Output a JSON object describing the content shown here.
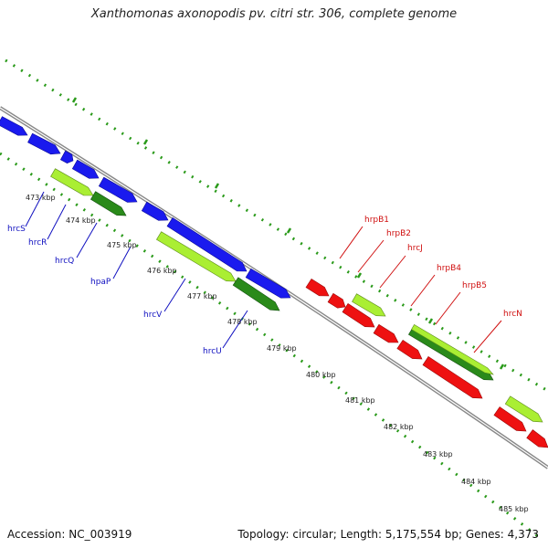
{
  "title": "Xanthomonas axonopodis pv. citri str. 306, complete genome",
  "footer": {
    "accession": "Accession: NC_003919",
    "summary": "Topology: circular; Length: 5,175,554 bp; Genes: 4,373"
  },
  "scale_labels": [
    "473 kbp",
    "474 kbp",
    "475 kbp",
    "476 kbp",
    "477 kbp",
    "478 kbp",
    "479 kbp",
    "480 kbp",
    "481 kbp",
    "482 kbp",
    "483 kbp",
    "484 kbp",
    "485 kbp"
  ],
  "gene_labels_left": [
    "hrcS",
    "hrcR",
    "hrcQ",
    "hpaP",
    "hrcV",
    "hrcU"
  ],
  "gene_labels_right": [
    "hrpB1",
    "hrpB2",
    "hrcJ",
    "hrpB4",
    "hrpB5",
    "hrcN"
  ],
  "colors": {
    "minus_strand_left": "#1a1aee",
    "minus_strand_right": "#ee1111",
    "plus_strand_light": "#aaee33",
    "plus_strand_dark": "#2a8a1a",
    "backbone": "#888888",
    "tick": "#2a9a1a",
    "label_left": "#1010c0",
    "label_right": "#d01010"
  }
}
